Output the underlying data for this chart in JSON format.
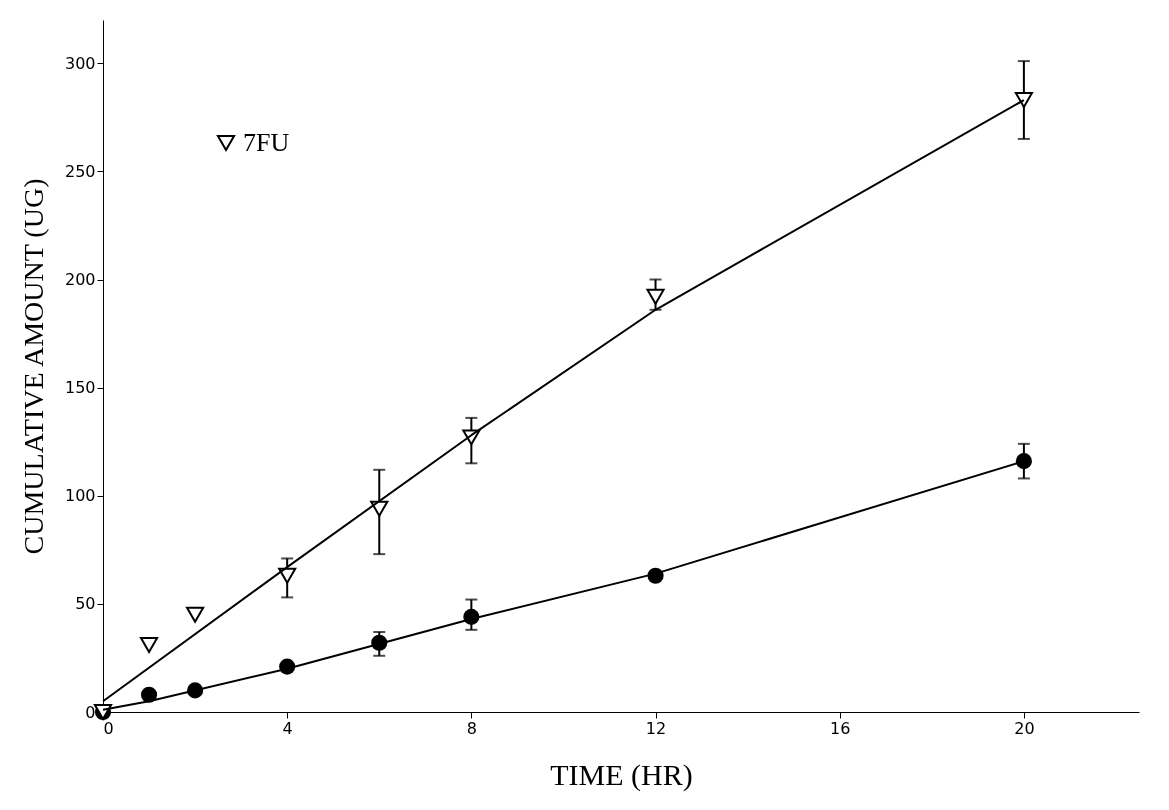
{
  "chart_data": {
    "type": "scatter",
    "xlabel": "TIME (HR)",
    "ylabel": "CUMULATIVE AMOUNT (UG)",
    "xlim": [
      0,
      22.5
    ],
    "xticks": [
      0,
      4,
      8,
      12,
      16,
      20
    ],
    "ylim": [
      0,
      320
    ],
    "yticks": [
      0,
      50,
      100,
      150,
      200,
      250,
      300
    ],
    "grid": false,
    "legend": "top left",
    "series": [
      {
        "color": "#000000",
        "marker": "circle",
        "x": [
          0,
          1,
          2,
          4,
          6,
          8,
          12,
          20
        ],
        "values": [
          0,
          8,
          10,
          21,
          32,
          44,
          63,
          116
        ],
        "errors": [
          null,
          null,
          null,
          null,
          [
            26,
            37
          ],
          [
            38,
            52
          ],
          null,
          [
            108,
            124
          ]
        ]
      },
      {
        "name": "7FU",
        "color": "#000000",
        "marker": "triangle",
        "x": [
          0,
          1,
          2,
          4,
          6,
          8,
          12,
          20
        ],
        "values": [
          0,
          31,
          45,
          63,
          94,
          127,
          192,
          283
        ],
        "errors": [
          null,
          null,
          null,
          [
            53,
            71
          ],
          [
            73,
            112
          ],
          [
            115,
            136
          ],
          [
            186,
            200
          ],
          [
            265,
            301
          ]
        ]
      },
      {
        "type": "line",
        "color": "#000000",
        "marker": "none",
        "x": [
          0,
          1,
          4,
          8,
          12,
          20
        ],
        "values": [
          1,
          5,
          20,
          43,
          64,
          116
        ]
      },
      {
        "type": "line",
        "color": "#000000",
        "marker": "none",
        "x": [
          0,
          4,
          8,
          12,
          20
        ],
        "values": [
          5,
          67,
          128,
          186,
          283
        ]
      }
    ]
  }
}
